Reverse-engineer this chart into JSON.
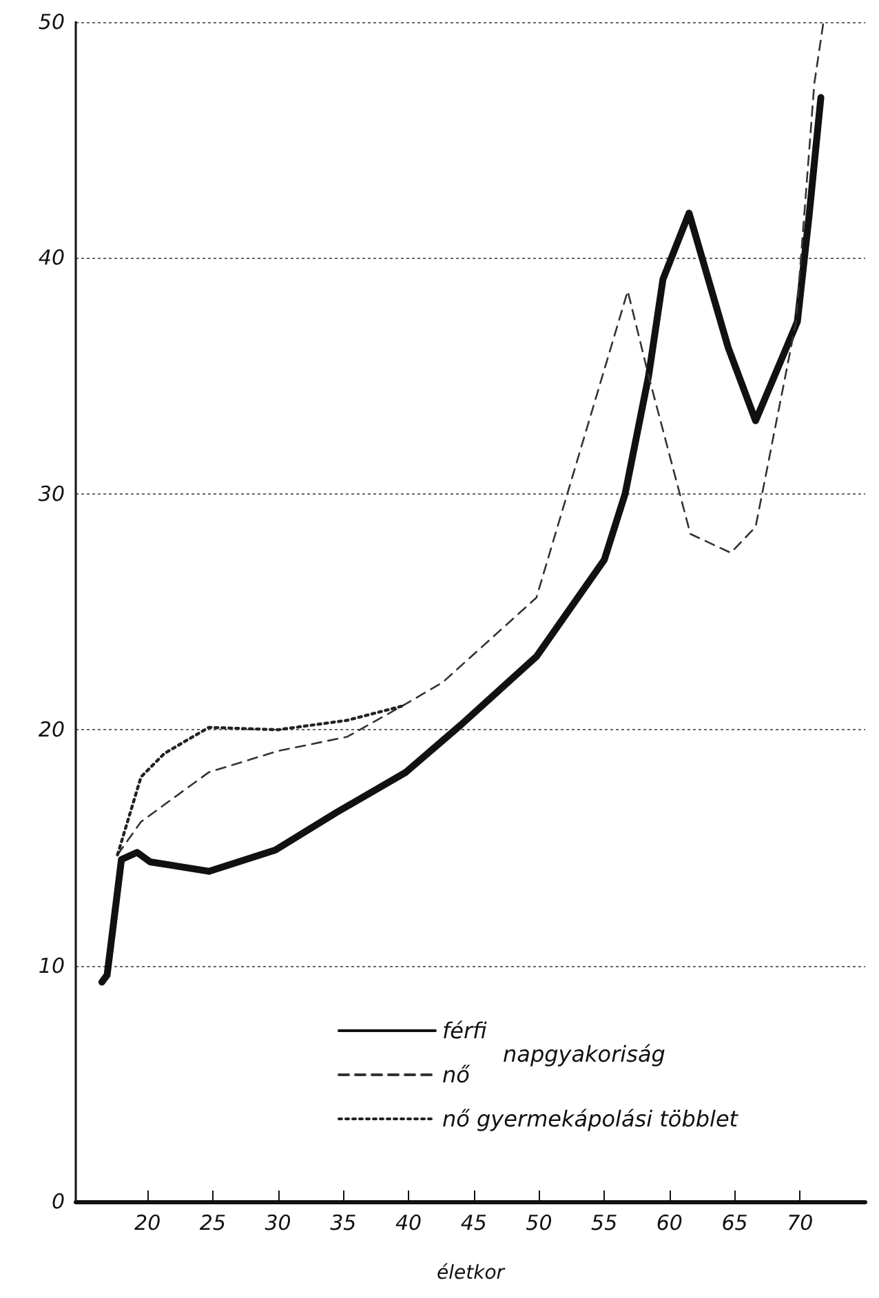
{
  "chart_data": {
    "type": "line",
    "xlabel": "életkor",
    "xlim": [
      14.5,
      75
    ],
    "xticks": [
      20,
      25,
      30,
      35,
      40,
      45,
      50,
      55,
      60,
      65,
      70
    ],
    "ylim": [
      0,
      50
    ],
    "yticks": [
      0,
      10,
      20,
      30,
      40,
      50
    ],
    "grid": "y",
    "legend": "bottom right",
    "marker": "none",
    "annotations": [
      "napgyakoriság"
    ],
    "series": [
      {
        "name": "férfi",
        "color": "#111111",
        "line_style": "solid",
        "x": [
          16.5,
          16.9,
          18.0,
          19.2,
          20.2,
          24.7,
          29.8,
          34.5,
          39.8,
          44,
          49.8,
          55,
          56.6,
          58.4,
          59.5,
          61.5,
          64.5,
          66.6,
          69.8,
          70.7,
          71.6
        ],
        "values": [
          9.3,
          9.6,
          14.5,
          14.8,
          14.4,
          14.0,
          14.9,
          16.5,
          18.2,
          20.2,
          23.1,
          27.2,
          30,
          35,
          39.1,
          41.9,
          36.2,
          33.1,
          37.3,
          41.8,
          46.8
        ]
      },
      {
        "name": "nő",
        "color": "#333333",
        "line_style": "dashed",
        "x": [
          17.7,
          19.5,
          24.7,
          30,
          35.3,
          39.8,
          42.6,
          49.8,
          56.8,
          58.4,
          61.6,
          64.7,
          66.6,
          69.7,
          71.1,
          71.8
        ],
        "values": [
          14.7,
          16.1,
          18.2,
          19.1,
          19.7,
          21.1,
          22.0,
          25.6,
          38.6,
          35,
          28.3,
          27.5,
          28.6,
          37.3,
          47.4,
          50
        ]
      },
      {
        "name": "nő gyermekápolási többlet",
        "color": "#222222",
        "line_style": "dotted",
        "x": [
          17.7,
          19.5,
          21.3,
          24.7,
          30,
          35.3,
          39.5
        ],
        "values": [
          14.7,
          18.0,
          19.0,
          20.1,
          20,
          20.4,
          21.0
        ]
      }
    ]
  }
}
